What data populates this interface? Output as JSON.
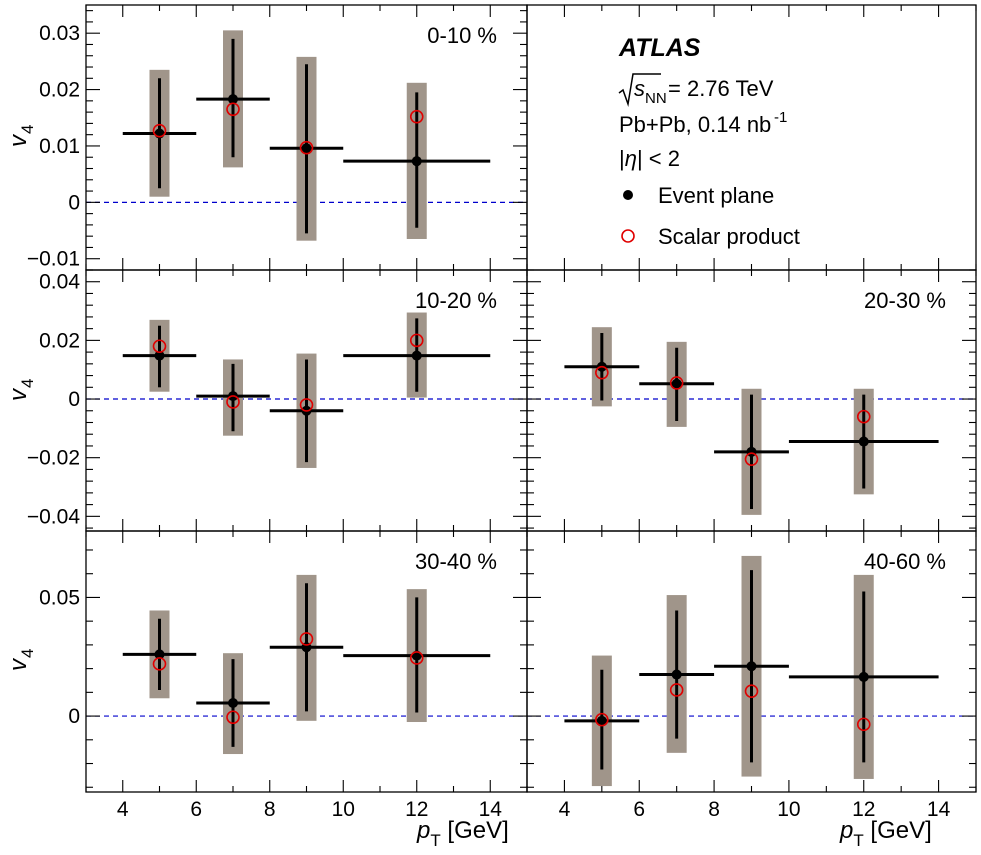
{
  "chart_data": {
    "type": "scatter",
    "xlabel": "p_T [GeV]",
    "xlabel_main": "p",
    "xlabel_sub": "T",
    "xlabel_unit": " [GeV]",
    "ylabel_main": "v",
    "ylabel_sub": "4",
    "xlim": [
      3,
      15
    ],
    "x_ticks": [
      4,
      6,
      8,
      10,
      12,
      14
    ],
    "zero_line": true,
    "legend": {
      "placement": "top-right",
      "title": "ATLAS",
      "energy_sqrt": "s",
      "energy_sub": "NN",
      "energy_value": " = 2.76 TeV",
      "system": "Pb+Pb, 0.14 nb",
      "system_sup": "-1",
      "eta_pre": "|",
      "eta_sym": "η",
      "eta_post": "| < 2",
      "entries": [
        {
          "name": "Event plane",
          "marker": "filled-circle",
          "color": "#000000"
        },
        {
          "name": "Scalar product",
          "marker": "open-circle",
          "color": "#e00000"
        }
      ]
    },
    "panels": [
      {
        "label": "0-10 %",
        "row": 0,
        "col": 0,
        "ylim": [
          -0.012,
          0.035
        ],
        "y_ticks": [
          -0.01,
          0,
          0.01,
          0.02,
          0.03
        ],
        "y_tick_labels": [
          "−0.01",
          "0",
          "0.01",
          "0.02",
          "0.03"
        ],
        "event_plane": [
          {
            "x": 5,
            "xlo": 4,
            "xhi": 6,
            "y": 0.0122,
            "stat_lo": 0.0025,
            "stat_hi": 0.022,
            "sys_lo": 0.001,
            "sys_hi": 0.0235
          },
          {
            "x": 7,
            "xlo": 6,
            "xhi": 8,
            "y": 0.0183,
            "stat_lo": 0.008,
            "stat_hi": 0.029,
            "sys_lo": 0.0062,
            "sys_hi": 0.0305
          },
          {
            "x": 9,
            "xlo": 8,
            "xhi": 10,
            "y": 0.0096,
            "stat_lo": -0.0055,
            "stat_hi": 0.0245,
            "sys_lo": -0.0068,
            "sys_hi": 0.0258
          },
          {
            "x": 12,
            "xlo": 10,
            "xhi": 14,
            "y": 0.0073,
            "stat_lo": -0.0045,
            "stat_hi": 0.0195,
            "sys_lo": -0.0065,
            "sys_hi": 0.0212
          }
        ],
        "scalar_product": [
          {
            "x": 5,
            "y": 0.0127
          },
          {
            "x": 7,
            "y": 0.0165
          },
          {
            "x": 9,
            "y": 0.0097
          },
          {
            "x": 12,
            "y": 0.0152
          }
        ]
      },
      {
        "label": "10-20 %",
        "row": 1,
        "col": 0,
        "ylim": [
          -0.045,
          0.044
        ],
        "y_ticks": [
          -0.04,
          -0.02,
          0,
          0.02,
          0.04
        ],
        "y_tick_labels": [
          "−0.04",
          "−0.02",
          "0",
          "0.02",
          "0.04"
        ],
        "event_plane": [
          {
            "x": 5,
            "xlo": 4,
            "xhi": 6,
            "y": 0.0148,
            "stat_lo": 0.004,
            "stat_hi": 0.025,
            "sys_lo": 0.0025,
            "sys_hi": 0.027
          },
          {
            "x": 7,
            "xlo": 6,
            "xhi": 8,
            "y": 0.001,
            "stat_lo": -0.011,
            "stat_hi": 0.012,
            "sys_lo": -0.0125,
            "sys_hi": 0.0135
          },
          {
            "x": 9,
            "xlo": 8,
            "xhi": 10,
            "y": -0.004,
            "stat_lo": -0.0215,
            "stat_hi": 0.0135,
            "sys_lo": -0.0235,
            "sys_hi": 0.0155
          },
          {
            "x": 12,
            "xlo": 10,
            "xhi": 14,
            "y": 0.0148,
            "stat_lo": 0.0025,
            "stat_hi": 0.0275,
            "sys_lo": 0.0005,
            "sys_hi": 0.0295
          }
        ],
        "scalar_product": [
          {
            "x": 5,
            "y": 0.018
          },
          {
            "x": 7,
            "y": -0.001
          },
          {
            "x": 9,
            "y": -0.002
          },
          {
            "x": 12,
            "y": 0.02
          }
        ]
      },
      {
        "label": "20-30 %",
        "row": 1,
        "col": 1,
        "ylim": [
          -0.045,
          0.044
        ],
        "y_ticks": [
          -0.04,
          -0.02,
          0,
          0.02,
          0.04
        ],
        "y_tick_labels": [
          "−0.04",
          "−0.02",
          "0",
          "0.02",
          "0.04"
        ],
        "event_plane": [
          {
            "x": 5,
            "xlo": 4,
            "xhi": 6,
            "y": 0.011,
            "stat_lo": -0.0005,
            "stat_hi": 0.0225,
            "sys_lo": -0.0025,
            "sys_hi": 0.0245
          },
          {
            "x": 7,
            "xlo": 6,
            "xhi": 8,
            "y": 0.0052,
            "stat_lo": -0.0075,
            "stat_hi": 0.0175,
            "sys_lo": -0.0095,
            "sys_hi": 0.0195
          },
          {
            "x": 9,
            "xlo": 8,
            "xhi": 10,
            "y": -0.018,
            "stat_lo": -0.0375,
            "stat_hi": 0.0015,
            "sys_lo": -0.0395,
            "sys_hi": 0.0035
          },
          {
            "x": 12,
            "xlo": 10,
            "xhi": 14,
            "y": -0.0145,
            "stat_lo": -0.0305,
            "stat_hi": 0.0015,
            "sys_lo": -0.0325,
            "sys_hi": 0.0035
          }
        ],
        "scalar_product": [
          {
            "x": 5,
            "y": 0.009
          },
          {
            "x": 7,
            "y": 0.0055
          },
          {
            "x": 9,
            "y": -0.0205
          },
          {
            "x": 12,
            "y": -0.006
          }
        ]
      },
      {
        "label": "30-40 %",
        "row": 2,
        "col": 0,
        "ylim": [
          -0.032,
          0.078
        ],
        "y_ticks": [
          0,
          0.05
        ],
        "y_tick_labels": [
          "0",
          "0.05"
        ],
        "event_plane": [
          {
            "x": 5,
            "xlo": 4,
            "xhi": 6,
            "y": 0.026,
            "stat_lo": 0.011,
            "stat_hi": 0.041,
            "sys_lo": 0.0075,
            "sys_hi": 0.0445
          },
          {
            "x": 7,
            "xlo": 6,
            "xhi": 8,
            "y": 0.0055,
            "stat_lo": -0.013,
            "stat_hi": 0.024,
            "sys_lo": -0.016,
            "sys_hi": 0.0265
          },
          {
            "x": 9,
            "xlo": 8,
            "xhi": 10,
            "y": 0.029,
            "stat_lo": 0.002,
            "stat_hi": 0.056,
            "sys_lo": -0.002,
            "sys_hi": 0.0595
          },
          {
            "x": 12,
            "xlo": 10,
            "xhi": 14,
            "y": 0.0255,
            "stat_lo": 0.0015,
            "stat_hi": 0.05,
            "sys_lo": -0.0025,
            "sys_hi": 0.0535
          }
        ],
        "scalar_product": [
          {
            "x": 5,
            "y": 0.022
          },
          {
            "x": 7,
            "y": -0.0005
          },
          {
            "x": 9,
            "y": 0.0325
          },
          {
            "x": 12,
            "y": 0.0245
          }
        ]
      },
      {
        "label": "40-60 %",
        "row": 2,
        "col": 1,
        "ylim": [
          -0.032,
          0.078
        ],
        "y_ticks": [
          0,
          0.05
        ],
        "y_tick_labels": [
          "0",
          "0.05"
        ],
        "event_plane": [
          {
            "x": 5,
            "xlo": 4,
            "xhi": 6,
            "y": -0.002,
            "stat_lo": -0.0225,
            "stat_hi": 0.0195,
            "sys_lo": -0.0295,
            "sys_hi": 0.0255
          },
          {
            "x": 7,
            "xlo": 6,
            "xhi": 8,
            "y": 0.0175,
            "stat_lo": -0.0095,
            "stat_hi": 0.0445,
            "sys_lo": -0.0155,
            "sys_hi": 0.051
          },
          {
            "x": 9,
            "xlo": 8,
            "xhi": 10,
            "y": 0.021,
            "stat_lo": -0.0195,
            "stat_hi": 0.0615,
            "sys_lo": -0.0255,
            "sys_hi": 0.0675
          },
          {
            "x": 12,
            "xlo": 10,
            "xhi": 14,
            "y": 0.0165,
            "stat_lo": -0.0195,
            "stat_hi": 0.0525,
            "sys_lo": -0.0265,
            "sys_hi": 0.0595
          }
        ],
        "scalar_product": [
          {
            "x": 5,
            "y": -0.0015
          },
          {
            "x": 7,
            "y": 0.011
          },
          {
            "x": 9,
            "y": 0.0105
          },
          {
            "x": 12,
            "y": -0.0035
          }
        ]
      }
    ]
  }
}
